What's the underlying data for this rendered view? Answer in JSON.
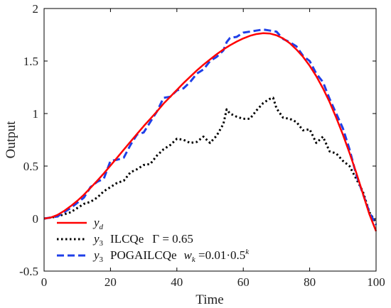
{
  "chart_data": {
    "type": "line",
    "xlabel": "Time",
    "ylabel": "Output",
    "xlim": [
      0,
      100
    ],
    "ylim": [
      -0.5,
      2
    ],
    "x_ticks": [
      "0",
      "20",
      "40",
      "60",
      "80",
      "100"
    ],
    "y_ticks": [
      "-0.5",
      "0",
      "0.5",
      "1",
      "1.5",
      "2"
    ],
    "legend_position": "bottom-left",
    "series": [
      {
        "name": "y_d",
        "color": "#ff0000",
        "style": "solid",
        "x": [
          0,
          2,
          4,
          6,
          8,
          10,
          12,
          14,
          16,
          18,
          20,
          22,
          24,
          26,
          28,
          30,
          32,
          34,
          36,
          38,
          40,
          42,
          44,
          46,
          48,
          50,
          52,
          54,
          56,
          58,
          60,
          62,
          64,
          66,
          68,
          70,
          72,
          74,
          76,
          78,
          80,
          82,
          84,
          86,
          88,
          90,
          92,
          94,
          96,
          98,
          100
        ],
        "y": [
          0,
          0.0097,
          0.034,
          0.072,
          0.118,
          0.169,
          0.227,
          0.293,
          0.36,
          0.43,
          0.505,
          0.58,
          0.656,
          0.731,
          0.806,
          0.88,
          0.95,
          1.02,
          1.095,
          1.16,
          1.225,
          1.29,
          1.35,
          1.41,
          1.465,
          1.515,
          1.565,
          1.61,
          1.65,
          1.685,
          1.715,
          1.74,
          1.757,
          1.765,
          1.762,
          1.745,
          1.715,
          1.67,
          1.61,
          1.54,
          1.455,
          1.355,
          1.24,
          1.11,
          0.96,
          0.8,
          0.625,
          0.44,
          0.24,
          0.04,
          -0.12
        ]
      },
      {
        "name": "y_3 ILCQe Γ = 0.65",
        "color": "#000000",
        "style": "dotted",
        "x": [
          0,
          4,
          8,
          10,
          12,
          14,
          16,
          18,
          20,
          22,
          24,
          26,
          28,
          30,
          32,
          34,
          36,
          38,
          40,
          42,
          44,
          46,
          48,
          50,
          52,
          54,
          55,
          56,
          58,
          60,
          62,
          64,
          66,
          68,
          69,
          70,
          72,
          74,
          76,
          78,
          80,
          82,
          84,
          86,
          88,
          90,
          92,
          94,
          96,
          98,
          100
        ],
        "y": [
          0,
          0.02,
          0.06,
          0.1,
          0.14,
          0.16,
          0.2,
          0.26,
          0.3,
          0.34,
          0.36,
          0.44,
          0.47,
          0.51,
          0.52,
          0.6,
          0.66,
          0.7,
          0.76,
          0.75,
          0.72,
          0.73,
          0.78,
          0.72,
          0.79,
          0.9,
          1.04,
          1.0,
          0.97,
          0.95,
          0.95,
          1.03,
          1.1,
          1.14,
          1.15,
          1.05,
          0.96,
          0.95,
          0.92,
          0.84,
          0.85,
          0.72,
          0.78,
          0.64,
          0.62,
          0.55,
          0.5,
          0.38,
          0.26,
          0.06,
          -0.04
        ]
      },
      {
        "name": "y_3 POGAILCQe w_k = 0.01·0.5^k",
        "color": "#1f3fe8",
        "style": "dashed",
        "x": [
          0,
          4,
          8,
          12,
          14,
          16,
          18,
          20,
          22,
          24,
          26,
          28,
          30,
          32,
          34,
          36,
          38,
          40,
          42,
          44,
          46,
          48,
          50,
          52,
          54,
          55,
          56,
          58,
          60,
          62,
          64,
          66,
          68,
          70,
          72,
          74,
          76,
          78,
          80,
          82,
          84,
          86,
          88,
          90,
          92,
          94,
          96,
          98,
          100
        ],
        "y": [
          0,
          0.02,
          0.1,
          0.2,
          0.3,
          0.35,
          0.38,
          0.55,
          0.56,
          0.58,
          0.7,
          0.8,
          0.82,
          0.92,
          1.02,
          1.15,
          1.16,
          1.22,
          1.24,
          1.3,
          1.38,
          1.42,
          1.5,
          1.54,
          1.6,
          1.68,
          1.72,
          1.73,
          1.77,
          1.78,
          1.79,
          1.8,
          1.79,
          1.78,
          1.71,
          1.68,
          1.64,
          1.55,
          1.5,
          1.38,
          1.3,
          1.14,
          1.0,
          0.86,
          0.66,
          0.42,
          0.24,
          0.06,
          -0.06
        ]
      }
    ],
    "legend": [
      {
        "symbol": "y",
        "sub": "d",
        "label": "",
        "extra": ""
      },
      {
        "symbol": "y",
        "sub": "3",
        "label": "ILCQe",
        "extra": "Γ = 0.65"
      },
      {
        "symbol": "y",
        "sub": "3",
        "label": "POGAILCQe",
        "extra_base": "w",
        "extra_sub": "k",
        "extra_mid": " =0.01·0.5",
        "extra_sup": "k"
      }
    ]
  }
}
